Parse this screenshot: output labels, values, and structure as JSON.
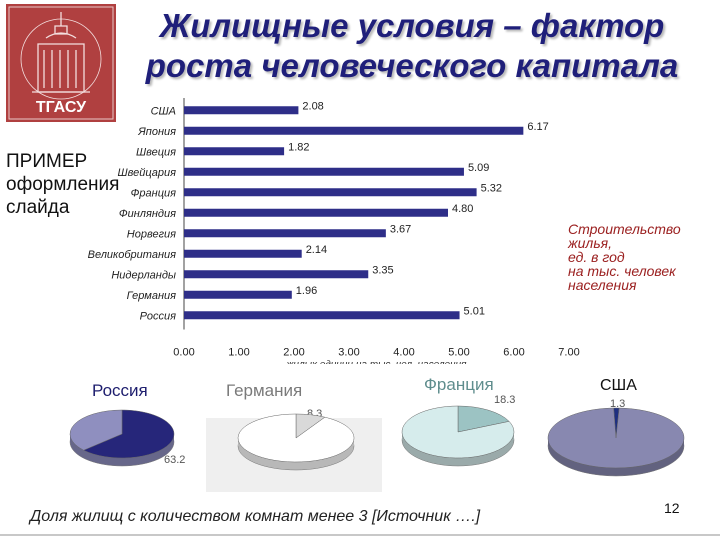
{
  "slide": {
    "title": "Жилищные условия – фактор\nроста человеческого капитала",
    "example_text": "ПРИМЕР\nоформления\nслайда",
    "side_note": "Строительство\nжилья,\nед. в год\nна тыс. человек\nнаселения",
    "footer_text": "Доля жилищ с количеством комнат менее 3 [Источник ….]",
    "page_number": "12",
    "logo_text": "ТГАСУ"
  },
  "colors": {
    "bar": "#2e2e88",
    "title": "#1f1f7a",
    "note": "#9b2020",
    "pie_russia": "#26267a",
    "pie_russia_rest": "#8f8fbf",
    "pie_germany": "#d9d9d9",
    "pie_germany_rest": "#ffffff",
    "pie_france": "#9cc3c3",
    "pie_france_rest": "#d6ecec",
    "pie_usa": "#1e2f80",
    "pie_usa_rest": "#8888b0",
    "logo": "#b04040"
  },
  "chart_data": [
    {
      "type": "bar",
      "orientation": "horizontal",
      "categories": [
        "США",
        "Япония",
        "Швеция",
        "Швейцария",
        "Франция",
        "Финляндия",
        "Норвегия",
        "Великобритания",
        "Нидерланды",
        "Германия",
        "Россия"
      ],
      "values": [
        2.08,
        6.17,
        1.82,
        5.09,
        5.32,
        4.8,
        3.67,
        2.14,
        3.35,
        1.96,
        5.01
      ],
      "value_labels": [
        "2.08",
        "6.17",
        "1.82",
        "5.09",
        "5.32",
        "4.80",
        "3.67",
        "2.14",
        "3.35",
        "1.96",
        "5.01"
      ],
      "xlim": [
        0,
        7
      ],
      "xticks": [
        "0.00",
        "1.00",
        "2.00",
        "3.00",
        "4.00",
        "5.00",
        "6.00",
        "7.00"
      ],
      "xlabel": "жилых единиц на тыс. чел. населения",
      "ylabel": "",
      "title": ""
    },
    {
      "type": "pie",
      "title": "Россия",
      "values": [
        63.2,
        36.8
      ],
      "labels": [
        "63.2",
        ""
      ]
    },
    {
      "type": "pie",
      "title": "Германия",
      "values": [
        8.3,
        91.7
      ],
      "labels": [
        "8.3",
        ""
      ]
    },
    {
      "type": "pie",
      "title": "Франция",
      "values": [
        18.3,
        81.7
      ],
      "labels": [
        "18.3",
        ""
      ]
    },
    {
      "type": "pie",
      "title": "США",
      "values": [
        1.3,
        98.7
      ],
      "labels": [
        "1.3",
        ""
      ]
    }
  ]
}
